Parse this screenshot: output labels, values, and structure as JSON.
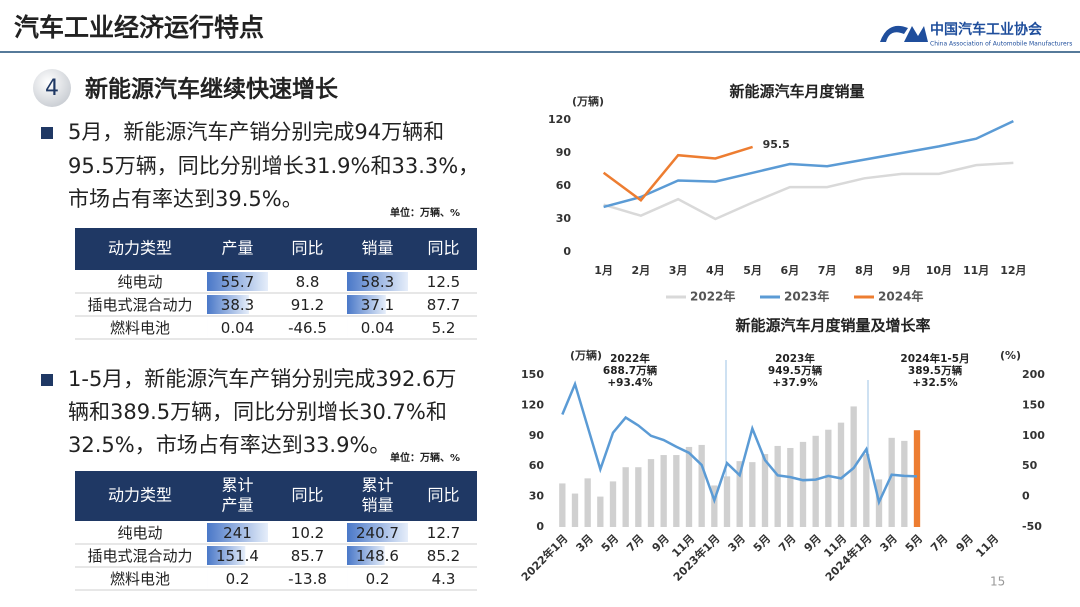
{
  "header": {
    "title": "汽车工业经济运行特点",
    "logo_cn": "中国汽车工业协会",
    "logo_en": "China Association of Automobile Manufacturers"
  },
  "section": {
    "number": 4,
    "title": "新能源汽车继续快速增长"
  },
  "bullets": [
    [
      "5月，新能源汽车产销分别完成94万辆和",
      "95.5万辆，同比分别增长31.9%和33.3%，",
      "市场占有率达到39.5%。"
    ],
    [
      "1-5月，新能源汽车产销分别完成392.6万",
      "辆和389.5万辆，同比分别增长30.7%和",
      "32.5%，市场占有率达到33.9%。"
    ]
  ],
  "tables": [
    {
      "unit": "单位：万辆、%",
      "headers": [
        "动力类型",
        "产量",
        "同比",
        "销量",
        "同比"
      ],
      "rows": [
        [
          "纯电动",
          55.7,
          8.8,
          58.3,
          12.5
        ],
        [
          "插电式混合动力",
          38.3,
          91.2,
          37.1,
          87.7
        ],
        [
          "燃料电池",
          0.04,
          -46.5,
          0.04,
          5.2
        ]
      ]
    },
    {
      "unit": "单位：万辆、%",
      "headers": [
        "动力类型",
        [
          "累计",
          "产量"
        ],
        "同比",
        [
          "累计",
          "销量"
        ],
        "同比"
      ],
      "rows": [
        [
          "纯电动",
          241,
          10.2,
          240.7,
          12.7
        ],
        [
          "插电式混合动力",
          151.4,
          85.7,
          148.6,
          85.2
        ],
        [
          "燃料电池",
          0.2,
          -13.8,
          0.2,
          4.3
        ]
      ]
    }
  ],
  "page_number": 15,
  "chart_data": [
    {
      "type": "line",
      "title": "新能源汽车月度销量",
      "y_label": "(万辆)",
      "categories": [
        "1月",
        "2月",
        "3月",
        "4月",
        "5月",
        "6月",
        "7月",
        "8月",
        "9月",
        "10月",
        "11月",
        "12月"
      ],
      "series": [
        {
          "name": "2022年",
          "color": "#d9d9d9",
          "values": [
            43,
            33,
            48,
            30,
            45,
            59,
            59,
            67,
            71,
            71,
            79,
            81
          ]
        },
        {
          "name": "2023年",
          "color": "#5b9bd5",
          "values": [
            41,
            50,
            65,
            64,
            72,
            80,
            78,
            84,
            90,
            96,
            103,
            119
          ]
        },
        {
          "name": "2024年",
          "color": "#ed7d31",
          "values": [
            72,
            47,
            88,
            85,
            95.5,
            null,
            null,
            null,
            null,
            null,
            null,
            null
          ]
        }
      ],
      "ylim": [
        0,
        120
      ],
      "yticks": [
        0,
        30,
        60,
        90,
        120
      ],
      "grid": false,
      "legend": "bottom"
    },
    {
      "type": "bar_line",
      "title": "新能源汽车月度销量及增长率",
      "y_label": "(万辆)",
      "y2_label": "(%)",
      "categories": [
        "2022年1月",
        null,
        "3月",
        null,
        "5月",
        null,
        "7月",
        null,
        "9月",
        null,
        "11月",
        null,
        "2023年1月",
        null,
        "3月",
        null,
        "5月",
        null,
        "7月",
        null,
        "9月",
        null,
        "11月",
        null,
        "2024年1月",
        null,
        "3月",
        null,
        "5月",
        null,
        "7月",
        null,
        "9月",
        null,
        "11月",
        null
      ],
      "series": [
        {
          "type": "bar",
          "color": "#d0d0d0",
          "colors": [
            "#d0d0d0",
            "#d0d0d0",
            "#d0d0d0",
            "#d0d0d0",
            "#d0d0d0",
            "#d0d0d0",
            "#d0d0d0",
            "#d0d0d0",
            "#d0d0d0",
            "#d0d0d0",
            "#d0d0d0",
            "#d0d0d0",
            "#d0d0d0",
            "#d0d0d0",
            "#d0d0d0",
            "#d0d0d0",
            "#d0d0d0",
            "#d0d0d0",
            "#d0d0d0",
            "#d0d0d0",
            "#d0d0d0",
            "#d0d0d0",
            "#d0d0d0",
            "#d0d0d0",
            "#d0d0d0",
            "#d0d0d0",
            "#d0d0d0",
            "#d0d0d0",
            "#ed7d31",
            null,
            null,
            null,
            null,
            null,
            null,
            null
          ],
          "values": [
            43,
            33,
            48,
            30,
            45,
            59,
            59,
            67,
            71,
            71,
            79,
            81,
            41,
            50,
            65,
            64,
            72,
            80,
            78,
            84,
            90,
            96,
            103,
            119,
            72,
            47,
            88,
            85,
            95.5,
            null,
            null,
            null,
            null,
            null,
            null,
            null
          ]
        },
        {
          "type": "line",
          "axis": "y2",
          "color": "#5b9bd5",
          "values": [
            135,
            185,
            115,
            45,
            105,
            130,
            117,
            100,
            93,
            82,
            72,
            52,
            -6,
            55,
            35,
            112,
            60,
            35,
            32,
            27,
            28,
            34,
            30,
            47,
            78,
            -9,
            36,
            34,
            33.3,
            null,
            null,
            null,
            null,
            null,
            null,
            null
          ]
        }
      ],
      "annotations": [
        [
          "2022年",
          "688.7万辆",
          "+93.4%"
        ],
        [
          "2023年",
          "949.5万辆",
          "+37.9%"
        ],
        [
          "2024年1-5月",
          "389.5万辆",
          "+32.5%"
        ]
      ],
      "ylim": [
        0,
        150
      ],
      "yticks": [
        0,
        30,
        60,
        90,
        120,
        150
      ],
      "y2lim": [
        -50,
        200
      ],
      "y2ticks": [
        -50,
        0,
        50,
        100,
        150,
        200
      ],
      "grid": false
    }
  ]
}
